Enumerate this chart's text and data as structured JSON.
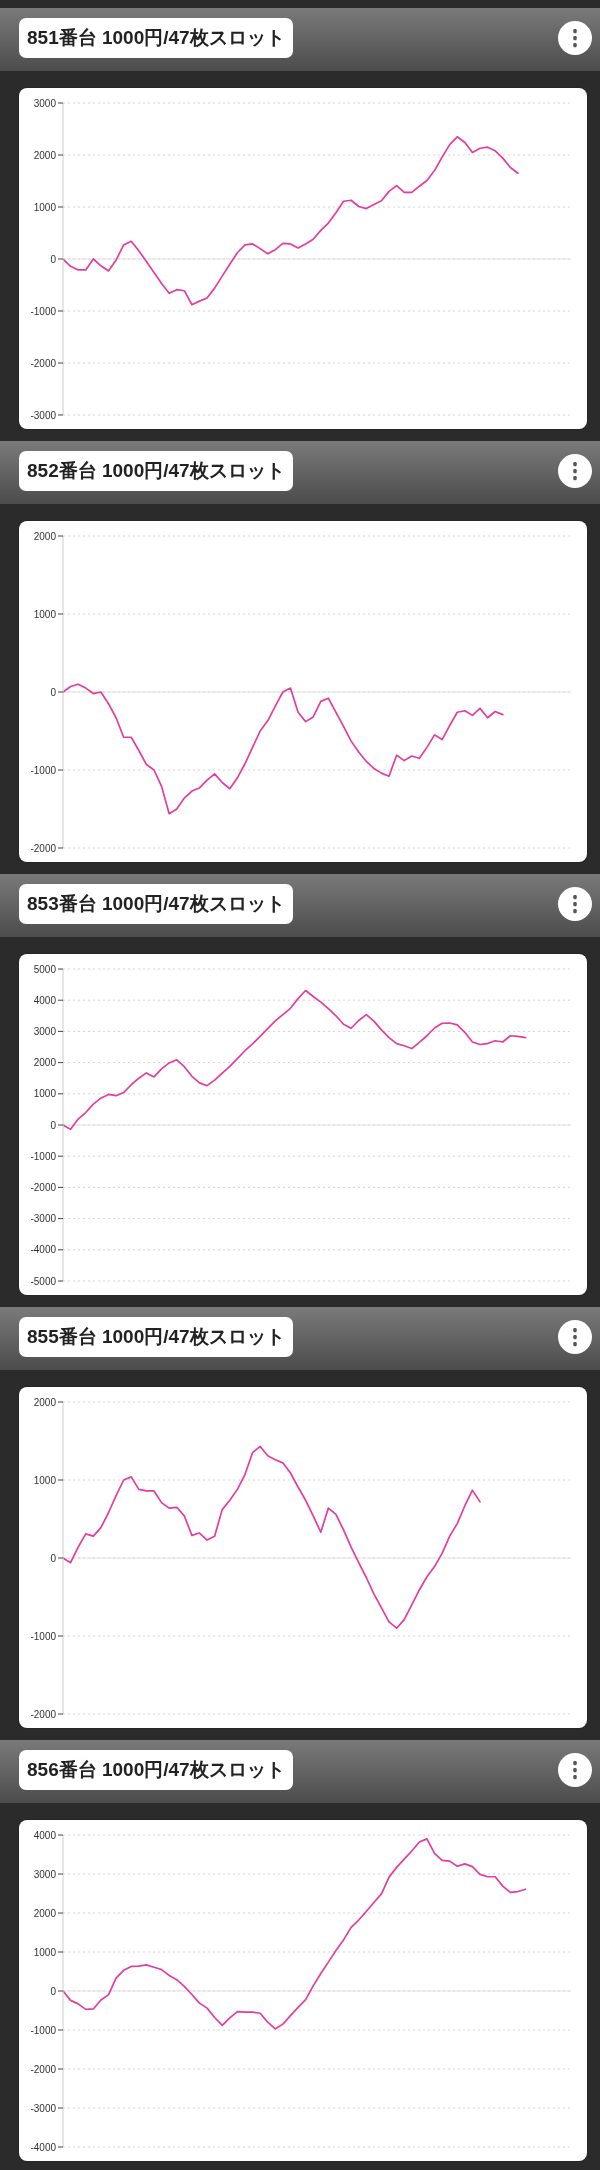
{
  "chart_data": [
    {
      "type": "line",
      "title": "851番台 1000円/47枚スロット",
      "categories": [
        null,
        null,
        null,
        null,
        null,
        null,
        null,
        null,
        null,
        null,
        null,
        null,
        null,
        null,
        null,
        null,
        null,
        null,
        null,
        null,
        null,
        null,
        null,
        null,
        null,
        null,
        null,
        null,
        null,
        null,
        null,
        null,
        null,
        null,
        null,
        null,
        null,
        null,
        null,
        null,
        null,
        null,
        null,
        null,
        null,
        null,
        null,
        null,
        null,
        null,
        null,
        null,
        null,
        null,
        null,
        null,
        null,
        null,
        null,
        null,
        null,
        null,
        null,
        null,
        null,
        null,
        null,
        null
      ],
      "color": "#e33d9d",
      "values": [
        0,
        -140,
        -210,
        -210,
        0,
        -130,
        -230,
        -20,
        270,
        340,
        160,
        -50,
        -260,
        -470,
        -660,
        -590,
        -610,
        -880,
        -810,
        -750,
        -560,
        -330,
        -100,
        120,
        270,
        290,
        200,
        100,
        180,
        300,
        290,
        210,
        290,
        380,
        550,
        690,
        890,
        1110,
        1130,
        1010,
        970,
        1050,
        1120,
        1300,
        1410,
        1280,
        1280,
        1400,
        1510,
        1700,
        1960,
        2200,
        2350,
        2240,
        2050,
        2130,
        2150,
        2080,
        1940,
        1760,
        1650,
        null,
        null,
        null,
        null,
        null,
        null,
        null
      ],
      "ylim": [
        -3000,
        3000
      ],
      "yticks": [
        -3000,
        -2000,
        -1000,
        0,
        1000,
        2000,
        3000
      ],
      "grid": "y",
      "tick_labels": "y",
      "ref_lines": [
        {
          "axis": "y",
          "value": 0,
          "color": "#e2e2e2",
          "line_style": "solid"
        }
      ]
    },
    {
      "type": "line",
      "title": "852番台 1000円/47枚スロット",
      "categories": [
        null,
        null,
        null,
        null,
        null,
        null,
        null,
        null,
        null,
        null,
        null,
        null,
        null,
        null,
        null,
        null,
        null,
        null,
        null,
        null,
        null,
        null,
        null,
        null,
        null,
        null,
        null,
        null,
        null,
        null,
        null,
        null,
        null,
        null,
        null,
        null,
        null,
        null,
        null,
        null,
        null,
        null,
        null,
        null,
        null,
        null,
        null,
        null,
        null,
        null,
        null,
        null,
        null,
        null,
        null,
        null,
        null,
        null,
        null,
        null,
        null,
        null,
        null,
        null,
        null,
        null,
        null,
        null
      ],
      "color": "#e33d9d",
      "values": [
        0,
        70,
        100,
        50,
        -20,
        0,
        -150,
        -330,
        -580,
        -580,
        -750,
        -930,
        -1000,
        -1210,
        -1560,
        -1500,
        -1360,
        -1270,
        -1230,
        -1130,
        -1050,
        -1160,
        -1240,
        -1100,
        -920,
        -710,
        -500,
        -370,
        -180,
        0,
        50,
        -260,
        -380,
        -320,
        -120,
        -80,
        -260,
        -440,
        -630,
        -770,
        -890,
        -980,
        -1040,
        -1080,
        -810,
        -880,
        -820,
        -850,
        -710,
        -550,
        -610,
        -430,
        -260,
        -240,
        -300,
        -210,
        -330,
        -250,
        -290,
        null,
        null,
        null,
        null,
        null,
        null,
        null,
        null,
        null
      ],
      "ylim": [
        -2000,
        2000
      ],
      "yticks": [
        -2000,
        -1000,
        0,
        1000,
        2000
      ],
      "grid": "y",
      "tick_labels": "y",
      "ref_lines": [
        {
          "axis": "y",
          "value": 0,
          "color": "#e2e2e2",
          "line_style": "solid"
        }
      ]
    },
    {
      "type": "line",
      "title": "853番台 1000円/47枚スロット",
      "categories": [
        null,
        null,
        null,
        null,
        null,
        null,
        null,
        null,
        null,
        null,
        null,
        null,
        null,
        null,
        null,
        null,
        null,
        null,
        null,
        null,
        null,
        null,
        null,
        null,
        null,
        null,
        null,
        null,
        null,
        null,
        null,
        null,
        null,
        null,
        null,
        null,
        null,
        null,
        null,
        null,
        null,
        null,
        null,
        null,
        null,
        null,
        null,
        null,
        null,
        null,
        null,
        null,
        null,
        null,
        null,
        null,
        null,
        null,
        null,
        null,
        null,
        null,
        null,
        null,
        null,
        null,
        null,
        null
      ],
      "color": "#e33d9d",
      "values": [
        0,
        -140,
        190,
        400,
        670,
        860,
        980,
        940,
        1040,
        1290,
        1500,
        1670,
        1540,
        1800,
        1990,
        2090,
        1870,
        1560,
        1350,
        1260,
        1440,
        1660,
        1880,
        2130,
        2380,
        2600,
        2840,
        3090,
        3340,
        3540,
        3740,
        4050,
        4310,
        4120,
        3940,
        3730,
        3500,
        3230,
        3100,
        3350,
        3540,
        3330,
        3050,
        2800,
        2610,
        2540,
        2450,
        2650,
        2860,
        3110,
        3260,
        3270,
        3210,
        2970,
        2660,
        2580,
        2610,
        2700,
        2660,
        2860,
        2840,
        2800,
        null,
        null,
        null,
        null,
        null,
        null
      ],
      "ylim": [
        -5000,
        5000
      ],
      "yticks": [
        -5000,
        -4000,
        -3000,
        -2000,
        -1000,
        0,
        1000,
        2000,
        3000,
        4000,
        5000
      ],
      "grid": "y",
      "tick_labels": "y",
      "ref_lines": [
        {
          "axis": "y",
          "value": 0,
          "color": "#e2e2e2",
          "line_style": "solid"
        }
      ]
    },
    {
      "type": "line",
      "title": "855番台 1000円/47枚スロット",
      "categories": [
        null,
        null,
        null,
        null,
        null,
        null,
        null,
        null,
        null,
        null,
        null,
        null,
        null,
        null,
        null,
        null,
        null,
        null,
        null,
        null,
        null,
        null,
        null,
        null,
        null,
        null,
        null,
        null,
        null,
        null,
        null,
        null,
        null,
        null,
        null,
        null,
        null,
        null,
        null,
        null,
        null,
        null,
        null,
        null,
        null,
        null,
        null,
        null,
        null,
        null,
        null,
        null,
        null,
        null,
        null,
        null,
        null,
        null,
        null,
        null,
        null,
        null,
        null,
        null,
        null,
        null,
        null,
        null
      ],
      "color": "#e33d9d",
      "values": [
        0,
        -60,
        140,
        310,
        280,
        390,
        580,
        800,
        1000,
        1040,
        880,
        860,
        860,
        710,
        640,
        650,
        540,
        290,
        320,
        230,
        280,
        620,
        740,
        880,
        1070,
        1350,
        1430,
        1310,
        1260,
        1220,
        1090,
        910,
        740,
        540,
        330,
        640,
        560,
        360,
        140,
        -60,
        -250,
        -460,
        -640,
        -820,
        -900,
        -790,
        -600,
        -410,
        -240,
        -110,
        60,
        280,
        440,
        670,
        870,
        720,
        null,
        null,
        null,
        null,
        null,
        null,
        null,
        null,
        null,
        null,
        null,
        null
      ],
      "ylim": [
        -2000,
        2000
      ],
      "yticks": [
        -2000,
        -1000,
        0,
        1000,
        2000
      ],
      "grid": "y",
      "tick_labels": "y",
      "ref_lines": [
        {
          "axis": "y",
          "value": 0,
          "color": "#e2e2e2",
          "line_style": "solid"
        }
      ]
    },
    {
      "type": "line",
      "title": "856番台 1000円/47枚スロット",
      "categories": [
        null,
        null,
        null,
        null,
        null,
        null,
        null,
        null,
        null,
        null,
        null,
        null,
        null,
        null,
        null,
        null,
        null,
        null,
        null,
        null,
        null,
        null,
        null,
        null,
        null,
        null,
        null,
        null,
        null,
        null,
        null,
        null,
        null,
        null,
        null,
        null,
        null,
        null,
        null,
        null,
        null,
        null,
        null,
        null,
        null,
        null,
        null,
        null,
        null,
        null,
        null,
        null,
        null,
        null,
        null,
        null,
        null,
        null,
        null,
        null,
        null,
        null,
        null,
        null,
        null,
        null,
        null,
        null
      ],
      "color": "#e33d9d",
      "values": [
        0,
        -240,
        -330,
        -470,
        -460,
        -230,
        -100,
        330,
        530,
        630,
        640,
        670,
        610,
        550,
        400,
        290,
        120,
        -90,
        -310,
        -440,
        -680,
        -880,
        -690,
        -530,
        -540,
        -540,
        -570,
        -800,
        -970,
        -850,
        -630,
        -420,
        -220,
        130,
        450,
        740,
        1040,
        1310,
        1630,
        1820,
        2040,
        2270,
        2490,
        2920,
        3170,
        3380,
        3590,
        3820,
        3900,
        3530,
        3350,
        3330,
        3200,
        3260,
        3190,
        2990,
        2930,
        2930,
        2690,
        2530,
        2550,
        2610,
        null,
        null,
        null,
        null,
        null,
        null
      ],
      "ylim": [
        -4000,
        4000
      ],
      "yticks": [
        -4000,
        -3000,
        -2000,
        -1000,
        0,
        1000,
        2000,
        3000,
        4000
      ],
      "grid": "y",
      "tick_labels": "y",
      "ref_lines": [
        {
          "axis": "y",
          "value": 0,
          "color": "#e2e2e2",
          "line_style": "solid"
        }
      ]
    }
  ]
}
